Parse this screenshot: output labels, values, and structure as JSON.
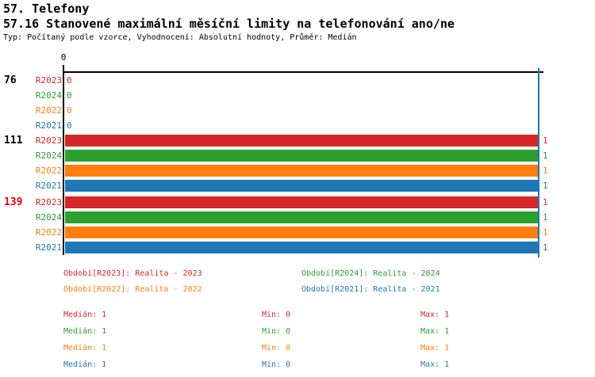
{
  "header": {
    "title": "57. Telefony",
    "subtitle": "57.16 Stanovené maximální měsíční limity na telefonování ano/ne",
    "meta": "Typ: Počítaný podle vzorce, Vyhodnocení: Absolutní hodnoty, Průměr: Medián"
  },
  "colors": {
    "background": "#ffffff",
    "axis": "#000000",
    "limit_line": "#1f77b4",
    "group_label_default": "#000000",
    "group_label_highlight": "#e60000",
    "series": {
      "R2023": "#d62728",
      "R2024": "#2ca02c",
      "R2022": "#ff7f0e",
      "R2021": "#1f77b4"
    }
  },
  "chart_data": {
    "type": "bar",
    "orientation": "horizontal",
    "xlim": [
      0,
      1
    ],
    "axis_zero_label": "0",
    "grid": false,
    "legend_position": "bottom",
    "series_order": [
      "R2023",
      "R2024",
      "R2022",
      "R2021"
    ],
    "groups": [
      {
        "label": "76",
        "highlight": false,
        "bars": [
          {
            "series": "R2023",
            "value": 0
          },
          {
            "series": "R2024",
            "value": 0
          },
          {
            "series": "R2022",
            "value": 0
          },
          {
            "series": "R2021",
            "value": 0
          }
        ]
      },
      {
        "label": "111",
        "highlight": false,
        "bars": [
          {
            "series": "R2023",
            "value": 1
          },
          {
            "series": "R2024",
            "value": 1
          },
          {
            "series": "R2022",
            "value": 1
          },
          {
            "series": "R2021",
            "value": 1
          }
        ]
      },
      {
        "label": "139",
        "highlight": true,
        "bars": [
          {
            "series": "R2023",
            "value": 1
          },
          {
            "series": "R2024",
            "value": 1
          },
          {
            "series": "R2022",
            "value": 1
          },
          {
            "series": "R2021",
            "value": 1
          }
        ]
      }
    ]
  },
  "legend": [
    {
      "series": "R2023",
      "label": "Období[R2023]: Realita - 2023",
      "col": 0,
      "row": 0
    },
    {
      "series": "R2024",
      "label": "Období[R2024]: Realita - 2024",
      "col": 1,
      "row": 0
    },
    {
      "series": "R2022",
      "label": "Období[R2022]: Realita - 2022",
      "col": 0,
      "row": 1
    },
    {
      "series": "R2021",
      "label": "Období[R2021]: Realita - 2021",
      "col": 1,
      "row": 1
    }
  ],
  "stats": [
    {
      "series": "R2023",
      "median_text": "Medián: 1",
      "min_text": "Min: 0",
      "max_text": "Max: 1"
    },
    {
      "series": "R2024",
      "median_text": "Medián: 1",
      "min_text": "Min: 0",
      "max_text": "Max: 1"
    },
    {
      "series": "R2022",
      "median_text": "Medián: 1",
      "min_text": "Min: 0",
      "max_text": "Max: 1"
    },
    {
      "series": "R2021",
      "median_text": "Medián: 1",
      "min_text": "Min: 0",
      "max_text": "Max: 1"
    }
  ]
}
